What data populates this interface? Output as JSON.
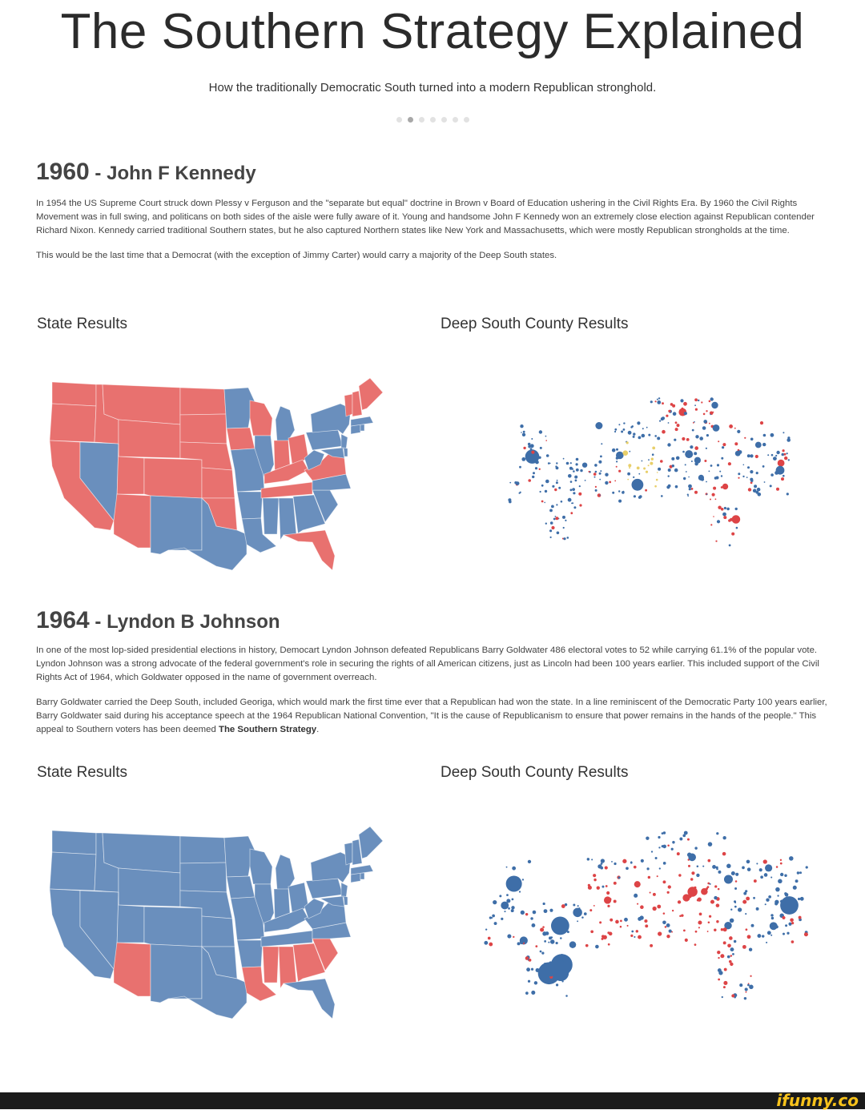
{
  "title": "The Southern Strategy Explained",
  "subtitle": "How the traditionally Democratic South turned into a modern Republican stronghold.",
  "carousel": {
    "count": 7,
    "active_index": 1
  },
  "colors": {
    "democrat": "#6a8fbd",
    "republican": "#e8716f",
    "county_dem": "#3e6ea8",
    "county_rep": "#dd4446",
    "county_other": "#e8cf6a"
  },
  "sections": [
    {
      "year": "1960",
      "separator": "-",
      "candidate": "John F Kennedy",
      "paragraphs": [
        "In 1954 the US Supreme Court struck down Plessy v Ferguson and the \"separate but equal\" doctrine in Brown v Board of Education ushering in the Civil Rights Era. By 1960 the Civil Rights Movement was in full swing, and politicans on both sides of the aisle were fully aware of it.  Young and handsome John F Kennedy won an extremely close election against Republican contender Richard Nixon. Kennedy carried traditional Southern states, but he also captured Northern states like New York and Massachusetts, which were mostly Republican strongholds at the time.",
        "This would be the last time that a Democrat (with the exception of Jimmy Carter) would carry a majority of the Deep South states."
      ],
      "state_label": "State Results",
      "county_label": "Deep South County Results"
    },
    {
      "year": "1964",
      "separator": "-",
      "candidate": "Lyndon B Johnson",
      "paragraphs": [
        "In one of the most lop-sided presidential elections in history, Democart Lyndon Johnson defeated Republicans Barry Goldwater 486 electoral votes to 52 while carrying 61.1% of the popular vote. Lyndon Johnson was a strong advocate of the federal government's role in securing the rights of all American citizens, just as Lincoln had been 100 years earlier. This included support of the Civil Rights Act of 1964, which Goldwater opposed in the name of government overreach."
      ],
      "paragraph2_text": "Barry Goldwater carried the Deep South, included Georiga, which would mark the first time ever that a Republican had won the state. In a line reminiscent of the Democratic Party 100 years earlier, Barry Goldwater said during his acceptance speech at the 1964 Republican National Convention, \"It is the cause of Republicanism to ensure that power remains in the hands of the people.\" This appeal to Southern voters has been deemed ",
      "paragraph2_bold": "The Southern Strategy",
      "paragraph2_end": ".",
      "state_label": "State Results",
      "county_label": "Deep South County Results"
    }
  ],
  "maps": {
    "1960_states": {
      "republican": [
        "WA",
        "OR",
        "CA",
        "ID",
        "MT",
        "WY",
        "UT",
        "AZ",
        "CO",
        "ND",
        "SD",
        "NE",
        "KS",
        "OK",
        "IA",
        "WI",
        "IN",
        "OH",
        "KY",
        "TN",
        "VA",
        "FL",
        "ME",
        "NH",
        "VT"
      ],
      "democrat": [
        "NV",
        "NM",
        "TX",
        "MN",
        "MO",
        "AR",
        "LA",
        "MS",
        "AL",
        "GA",
        "SC",
        "NC",
        "IL",
        "MI",
        "WV",
        "PA",
        "NY",
        "NJ",
        "MA",
        "CT",
        "RI",
        "DE",
        "MD"
      ]
    },
    "1964_states": {
      "republican": [
        "AZ",
        "LA",
        "MS",
        "AL",
        "GA",
        "SC"
      ],
      "democrat": [
        "WA",
        "OR",
        "CA",
        "ID",
        "NV",
        "MT",
        "WY",
        "UT",
        "CO",
        "NM",
        "TX",
        "ND",
        "SD",
        "NE",
        "KS",
        "OK",
        "MN",
        "IA",
        "MO",
        "AR",
        "WI",
        "IL",
        "MI",
        "IN",
        "OH",
        "KY",
        "TN",
        "WV",
        "VA",
        "NC",
        "FL",
        "PA",
        "NY",
        "NJ",
        "MA",
        "CT",
        "RI",
        "DE",
        "MD",
        "ME",
        "NH",
        "VT"
      ]
    }
  },
  "watermark": "ifunny.co"
}
